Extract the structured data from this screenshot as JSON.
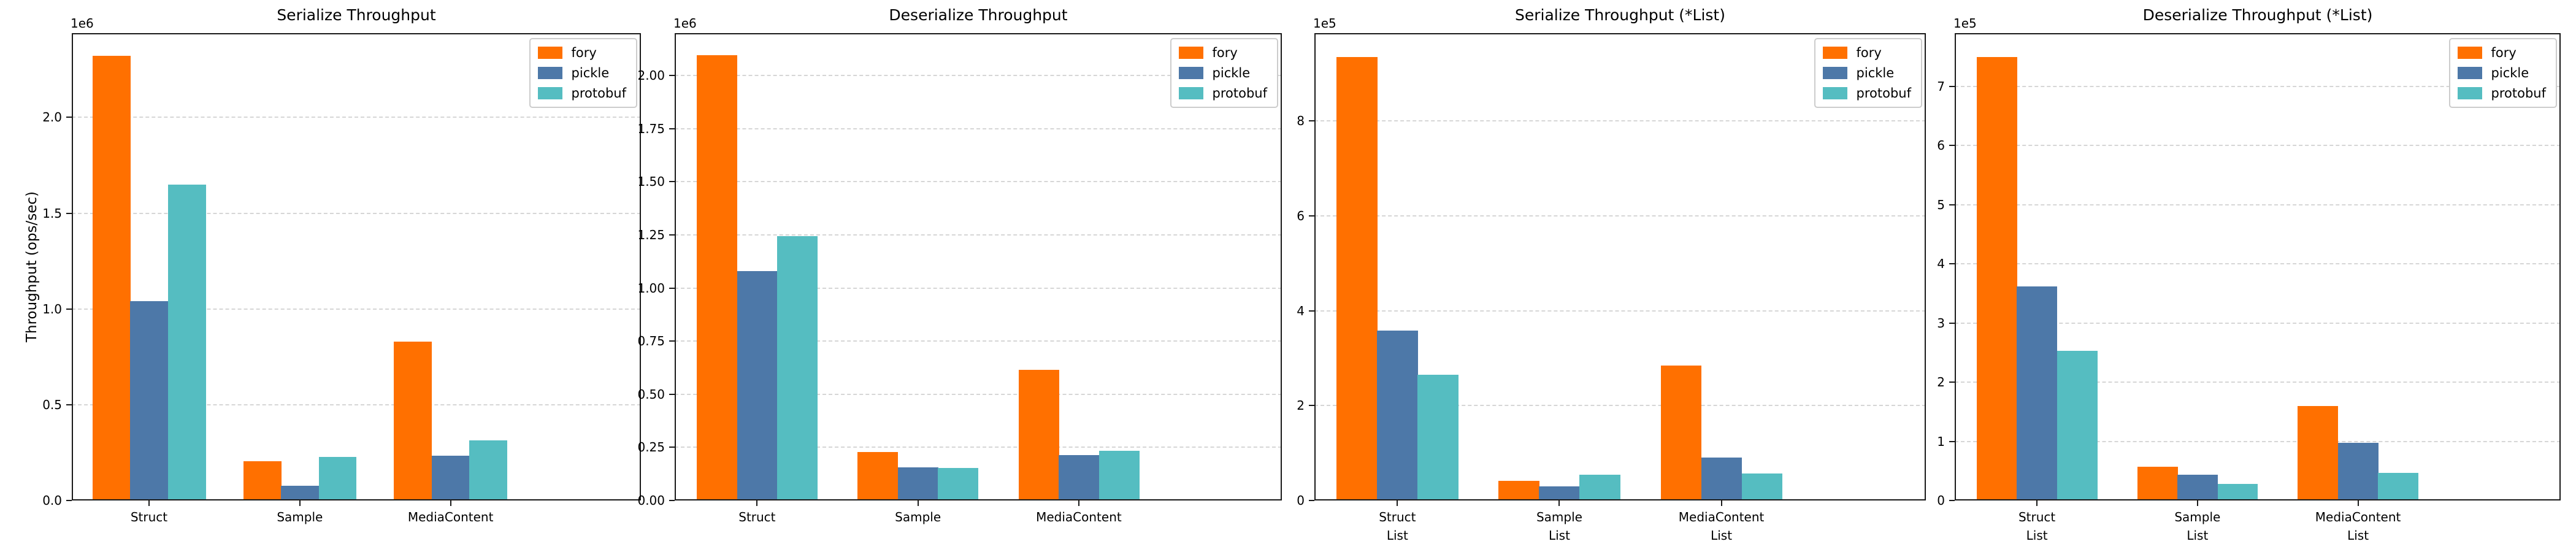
{
  "figure": {
    "background": "#ffffff",
    "text_color": "#000000",
    "spine_color": "#1a1a1a",
    "grid_color": "#d6d6d6",
    "grid_style": "dashed-horizontal"
  },
  "legend": {
    "labels": [
      "fory",
      "pickle",
      "protobuf"
    ],
    "position": "upper-right"
  },
  "colors": {
    "fory": "#ff7000",
    "pickle": "#4d78a8",
    "protobuf": "#55bdc1"
  },
  "chart_data": [
    {
      "type": "bar",
      "title": "Serialize Throughput",
      "ylabel": "Throughput (ops/sec)",
      "offset_label": "1e6",
      "categories": [
        "Struct",
        "Sample",
        "MediaContent"
      ],
      "ytick_values": [
        0,
        500000,
        1000000,
        1500000,
        2000000
      ],
      "ytick_labels": [
        "0.0",
        "0.5",
        "1.0",
        "1.5",
        "2.0"
      ],
      "ylim": [
        0,
        2440000
      ],
      "legend_position": "upper-right",
      "series": [
        {
          "name": "fory",
          "color": "#ff7000",
          "values": [
            2320000,
            205000,
            830000
          ]
        },
        {
          "name": "pickle",
          "color": "#4d78a8",
          "values": [
            1040000,
            78000,
            235000
          ]
        },
        {
          "name": "protobuf",
          "color": "#55bdc1",
          "values": [
            1650000,
            228000,
            313000
          ]
        }
      ]
    },
    {
      "type": "bar",
      "title": "Deserialize Throughput",
      "ylabel": "",
      "offset_label": "1e6",
      "categories": [
        "Struct",
        "Sample",
        "MediaContent"
      ],
      "ytick_values": [
        0,
        250000,
        500000,
        750000,
        1000000,
        1250000,
        1500000,
        1750000,
        2000000
      ],
      "ytick_labels": [
        "0.00",
        "0.25",
        "0.50",
        "0.75",
        "1.00",
        "1.25",
        "1.50",
        "1.75",
        "2.00"
      ],
      "ylim": [
        0,
        2200000
      ],
      "legend_position": "upper-right",
      "series": [
        {
          "name": "fory",
          "color": "#ff7000",
          "values": [
            2095000,
            228000,
            615000
          ]
        },
        {
          "name": "pickle",
          "color": "#4d78a8",
          "values": [
            1080000,
            155000,
            215000
          ]
        },
        {
          "name": "protobuf",
          "color": "#55bdc1",
          "values": [
            1245000,
            152000,
            233000
          ]
        }
      ]
    },
    {
      "type": "bar",
      "title": "Serialize Throughput (*List)",
      "ylabel": "",
      "offset_label": "1e5",
      "categories": [
        "Struct\nList",
        "Sample\nList",
        "MediaContent\nList"
      ],
      "ytick_values": [
        0,
        200000,
        400000,
        600000,
        800000
      ],
      "ytick_labels": [
        "0",
        "2",
        "4",
        "6",
        "8"
      ],
      "ylim": [
        0,
        985000
      ],
      "legend_position": "upper-right",
      "series": [
        {
          "name": "fory",
          "color": "#ff7000",
          "values": [
            935000,
            42000,
            284000
          ]
        },
        {
          "name": "pickle",
          "color": "#4d78a8",
          "values": [
            358000,
            30000,
            90000
          ]
        },
        {
          "name": "protobuf",
          "color": "#55bdc1",
          "values": [
            265000,
            54000,
            57000
          ]
        }
      ]
    },
    {
      "type": "bar",
      "title": "Deserialize Throughput (*List)",
      "ylabel": "",
      "offset_label": "1e5",
      "categories": [
        "Struct\nList",
        "Sample\nList",
        "MediaContent\nList"
      ],
      "ytick_values": [
        0,
        100000,
        200000,
        300000,
        400000,
        500000,
        600000,
        700000
      ],
      "ytick_labels": [
        "0",
        "1",
        "2",
        "3",
        "4",
        "5",
        "6",
        "7"
      ],
      "ylim": [
        0,
        790000
      ],
      "legend_position": "upper-right",
      "series": [
        {
          "name": "fory",
          "color": "#ff7000",
          "values": [
            750000,
            57000,
            160000
          ]
        },
        {
          "name": "pickle",
          "color": "#4d78a8",
          "values": [
            362000,
            44000,
            97000
          ]
        },
        {
          "name": "protobuf",
          "color": "#55bdc1",
          "values": [
            253000,
            28000,
            47000
          ]
        }
      ]
    }
  ]
}
